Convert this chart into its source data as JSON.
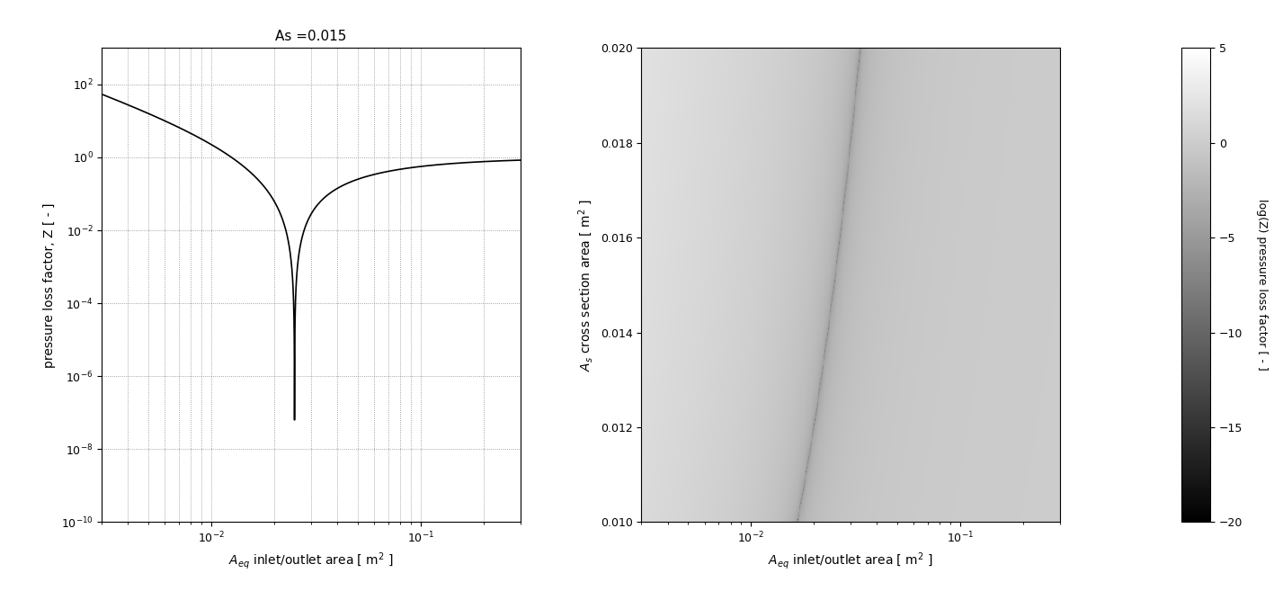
{
  "As_fixed": 0.015,
  "Aw": 1.0,
  "As_range": [
    0.01,
    0.02
  ],
  "Aeq_log_range": [
    -3,
    0
  ],
  "left_ylim": [
    1e-10,
    1000.0
  ],
  "left_xlim": [
    0.003,
    0.3
  ],
  "right_xlim": [
    0.003,
    0.3
  ],
  "colorbar_range": [
    -20,
    5
  ],
  "colorbar_ticks": [
    5,
    0,
    -5,
    -10,
    -15,
    -20
  ],
  "title_left": "As =0.015",
  "xlabel": "$A_{eq}$ inlet/outlet area [ m$^2$ ]",
  "ylabel_left": "pressure loss factor, Z [ - ]",
  "ylabel_right": "$A_s$ cross section area [ m$^2$ ]",
  "cbar_label": "log(Z) pressure loss factor [ - ]",
  "n_line": 10000,
  "n_aeq_grid": 800,
  "n_as_grid": 400,
  "ratio": 1.6667,
  "fig_width": 14.17,
  "fig_height": 6.67,
  "dpi": 100
}
